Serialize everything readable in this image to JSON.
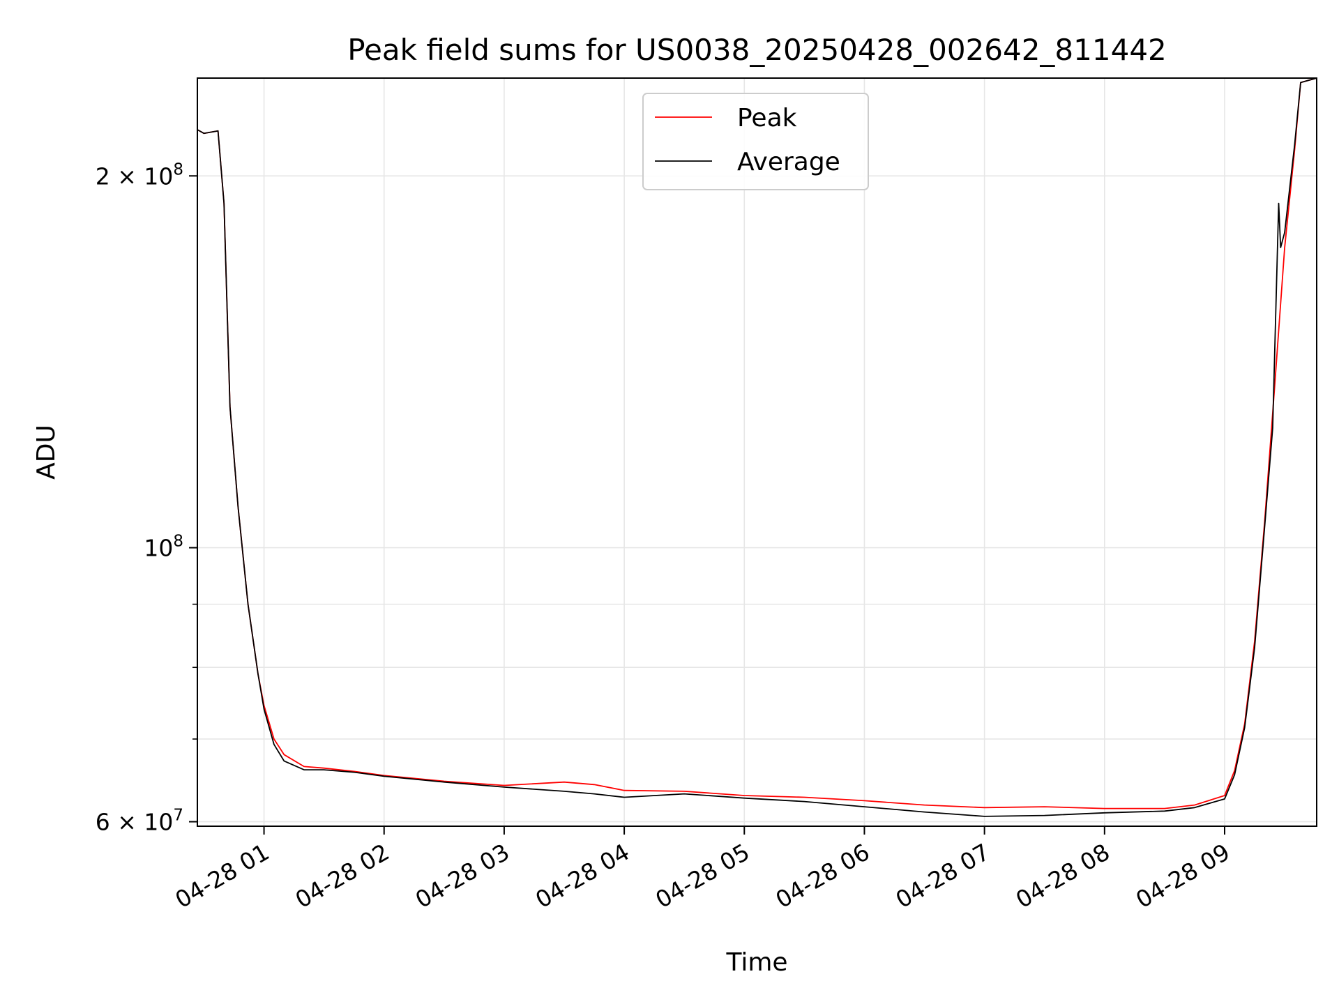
{
  "chart_data": {
    "type": "line",
    "title": "Peak field sums for US0038_20250428_002642_811442",
    "xlabel": "Time",
    "ylabel": "ADU",
    "yscale": "log",
    "xlim": [
      "2025-04-28T00:26:42",
      "2025-04-28T09:46:00"
    ],
    "ylim": [
      59500000,
      240000000
    ],
    "grid": true,
    "legend_position": "top-center",
    "x_ticks": [
      "04-28 01",
      "04-28 02",
      "04-28 03",
      "04-28 04",
      "04-28 05",
      "04-28 06",
      "04-28 07",
      "04-28 08",
      "04-28 09"
    ],
    "y_ticks": [
      {
        "value": 200000000,
        "mantissa": "2",
        "base": "10",
        "exp": "8"
      },
      {
        "value": 100000000,
        "mantissa": "",
        "base": "10",
        "exp": "8"
      },
      {
        "value": 60000000,
        "mantissa": "6",
        "base": "10",
        "exp": "7"
      }
    ],
    "y_minor_ticks": [
      70000000,
      80000000,
      90000000
    ],
    "series": [
      {
        "name": "Peak",
        "color": "#ff0000",
        "points": [
          [
            "2025-04-28T00:26:42",
            218000000
          ],
          [
            "2025-04-28T00:30:00",
            216500000
          ],
          [
            "2025-04-28T00:37:00",
            217500000
          ],
          [
            "2025-04-28T00:40:00",
            190000000
          ],
          [
            "2025-04-28T00:43:00",
            130000000
          ],
          [
            "2025-04-28T00:47:00",
            108000000
          ],
          [
            "2025-04-28T00:52:00",
            90000000
          ],
          [
            "2025-04-28T00:57:00",
            79000000
          ],
          [
            "2025-04-28T01:00:00",
            74500000
          ],
          [
            "2025-04-28T01:05:00",
            70000000
          ],
          [
            "2025-04-28T01:10:00",
            68000000
          ],
          [
            "2025-04-28T01:20:00",
            66500000
          ],
          [
            "2025-04-28T01:30:00",
            66300000
          ],
          [
            "2025-04-28T01:45:00",
            65900000
          ],
          [
            "2025-04-28T02:00:00",
            65400000
          ],
          [
            "2025-04-28T02:30:00",
            64700000
          ],
          [
            "2025-04-28T03:00:00",
            64200000
          ],
          [
            "2025-04-28T03:30:00",
            64600000
          ],
          [
            "2025-04-28T03:45:00",
            64300000
          ],
          [
            "2025-04-28T04:00:00",
            63600000
          ],
          [
            "2025-04-28T04:30:00",
            63500000
          ],
          [
            "2025-04-28T05:00:00",
            63000000
          ],
          [
            "2025-04-28T05:30:00",
            62800000
          ],
          [
            "2025-04-28T06:00:00",
            62400000
          ],
          [
            "2025-04-28T06:30:00",
            61900000
          ],
          [
            "2025-04-28T07:00:00",
            61600000
          ],
          [
            "2025-04-28T07:30:00",
            61700000
          ],
          [
            "2025-04-28T08:00:00",
            61500000
          ],
          [
            "2025-04-28T08:30:00",
            61500000
          ],
          [
            "2025-04-28T08:45:00",
            61900000
          ],
          [
            "2025-04-28T09:00:00",
            63000000
          ],
          [
            "2025-04-28T09:05:00",
            66000000
          ],
          [
            "2025-04-28T09:10:00",
            72000000
          ],
          [
            "2025-04-28T09:15:00",
            84000000
          ],
          [
            "2025-04-28T09:20:00",
            105000000
          ],
          [
            "2025-04-28T09:25:00",
            135000000
          ],
          [
            "2025-04-28T09:30:00",
            175000000
          ],
          [
            "2025-04-28T09:35:00",
            210000000
          ],
          [
            "2025-04-28T09:38:00",
            238000000
          ],
          [
            "2025-04-28T09:46:00",
            240000000
          ]
        ]
      },
      {
        "name": "Average",
        "color": "#000000",
        "points": [
          [
            "2025-04-28T00:26:42",
            218000000
          ],
          [
            "2025-04-28T00:30:00",
            216500000
          ],
          [
            "2025-04-28T00:37:00",
            217500000
          ],
          [
            "2025-04-28T00:40:00",
            190000000
          ],
          [
            "2025-04-28T00:43:00",
            130000000
          ],
          [
            "2025-04-28T00:47:00",
            108000000
          ],
          [
            "2025-04-28T00:52:00",
            90000000
          ],
          [
            "2025-04-28T00:57:00",
            79000000
          ],
          [
            "2025-04-28T01:00:00",
            74000000
          ],
          [
            "2025-04-28T01:05:00",
            69300000
          ],
          [
            "2025-04-28T01:10:00",
            67200000
          ],
          [
            "2025-04-28T01:20:00",
            66100000
          ],
          [
            "2025-04-28T01:30:00",
            66100000
          ],
          [
            "2025-04-28T01:45:00",
            65800000
          ],
          [
            "2025-04-28T02:00:00",
            65300000
          ],
          [
            "2025-04-28T02:30:00",
            64600000
          ],
          [
            "2025-04-28T03:00:00",
            64000000
          ],
          [
            "2025-04-28T03:30:00",
            63500000
          ],
          [
            "2025-04-28T03:45:00",
            63200000
          ],
          [
            "2025-04-28T04:00:00",
            62800000
          ],
          [
            "2025-04-28T04:30:00",
            63200000
          ],
          [
            "2025-04-28T05:00:00",
            62700000
          ],
          [
            "2025-04-28T05:30:00",
            62300000
          ],
          [
            "2025-04-28T06:00:00",
            61700000
          ],
          [
            "2025-04-28T06:30:00",
            61100000
          ],
          [
            "2025-04-28T07:00:00",
            60600000
          ],
          [
            "2025-04-28T07:30:00",
            60700000
          ],
          [
            "2025-04-28T08:00:00",
            61000000
          ],
          [
            "2025-04-28T08:30:00",
            61200000
          ],
          [
            "2025-04-28T08:45:00",
            61600000
          ],
          [
            "2025-04-28T09:00:00",
            62600000
          ],
          [
            "2025-04-28T09:05:00",
            65500000
          ],
          [
            "2025-04-28T09:10:00",
            71500000
          ],
          [
            "2025-04-28T09:15:00",
            83000000
          ],
          [
            "2025-04-28T09:20:00",
            104000000
          ],
          [
            "2025-04-28T09:24:00",
            125000000
          ],
          [
            "2025-04-28T09:27:00",
            190000000
          ],
          [
            "2025-04-28T09:28:00",
            175000000
          ],
          [
            "2025-04-28T09:30:00",
            180000000
          ],
          [
            "2025-04-28T09:35:00",
            212000000
          ],
          [
            "2025-04-28T09:38:00",
            238000000
          ],
          [
            "2025-04-28T09:46:00",
            240000000
          ]
        ]
      }
    ]
  }
}
